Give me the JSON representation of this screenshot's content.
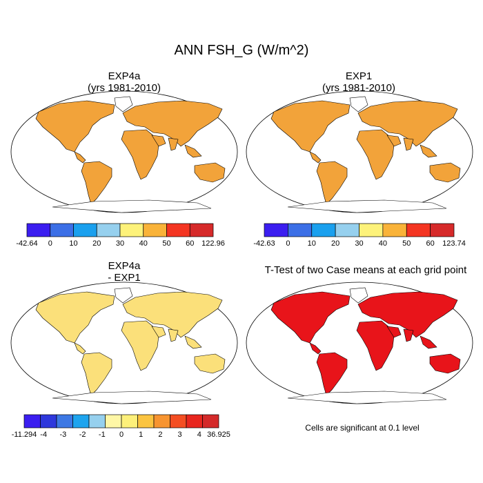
{
  "title": "ANN FSH_G (W/m^2)",
  "panels": [
    {
      "id": "exp4a",
      "title_line1": "EXP4a",
      "title_line2": "(yrs 1981-2010)"
    },
    {
      "id": "exp1",
      "title_line1": "EXP1",
      "title_line2": "(yrs 1981-2010)"
    },
    {
      "id": "diff",
      "title_line1": "EXP4a",
      "title_line2": "- EXP1"
    },
    {
      "id": "ttest",
      "title_line1": "T-Test of two Case means at each grid point"
    }
  ],
  "colorbars": [
    {
      "id": "cb-exp4a",
      "colors": [
        "#3b1ef0",
        "#3c6fe6",
        "#1aa0ee",
        "#96d0ee",
        "#fdf27a",
        "#f9b339",
        "#f43522",
        "#d62a2a"
      ],
      "labels": [
        "-42.64",
        "0",
        "10",
        "20",
        "30",
        "40",
        "50",
        "60",
        "122.96"
      ]
    },
    {
      "id": "cb-exp1",
      "colors": [
        "#3b1ef0",
        "#3c6fe6",
        "#1aa0ee",
        "#96d0ee",
        "#fdf27a",
        "#f9b339",
        "#f43522",
        "#d62a2a"
      ],
      "labels": [
        "-42.63",
        "0",
        "10",
        "20",
        "30",
        "40",
        "50",
        "60",
        "123.74"
      ]
    },
    {
      "id": "cb-diff",
      "colors": [
        "#3b1ef0",
        "#2e38dc",
        "#3d78e4",
        "#1ea4ee",
        "#96d0ee",
        "#fff7a6",
        "#fdf07a",
        "#fbc440",
        "#f79430",
        "#f44e22",
        "#e8261e",
        "#d42a2a"
      ],
      "labels": [
        "-11.294",
        "-4",
        "-3",
        "-2",
        "-1",
        "0",
        "1",
        "2",
        "3",
        "4",
        "36.925"
      ]
    }
  ],
  "significance_note": "Cells are significant at 0.1 level",
  "colors": {
    "land_exp": "#f2a33a",
    "land_diff": "#fbe07a",
    "land_ttest": "#e8141a",
    "ocean": "#ffffff"
  }
}
